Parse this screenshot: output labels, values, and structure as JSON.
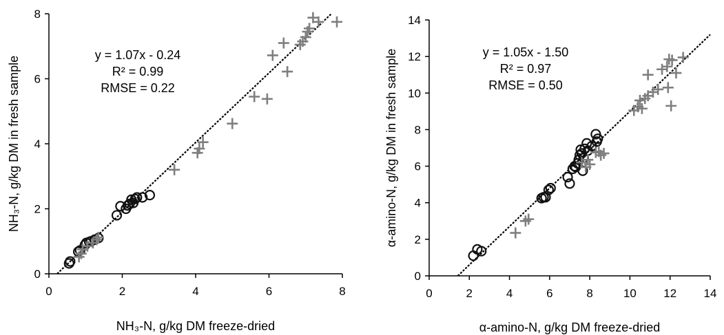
{
  "colors": {
    "circle": "#111111",
    "plus": "#7f7f7f",
    "line": "#000000"
  },
  "chart_data": [
    {
      "type": "scatter",
      "xlim": [
        0,
        8
      ],
      "ylim": [
        0,
        8
      ],
      "xticks": [
        "0",
        "2",
        "4",
        "6",
        "8"
      ],
      "yticks": [
        "0",
        "2",
        "4",
        "6",
        "8"
      ],
      "xlabel": "NH₃-N, g/kg DM freeze-dried",
      "ylabel": "NH₃-N, g/kg DM in fresh sample",
      "annotations": [
        "y = 1.07x - 0.24",
        "R² = 0.99",
        "RMSE = 0.22"
      ],
      "regression": {
        "slope": 1.07,
        "intercept": -0.24
      },
      "series": [
        {
          "marker": "circle",
          "points": [
            [
              0.55,
              0.32
            ],
            [
              0.58,
              0.38
            ],
            [
              0.8,
              0.68
            ],
            [
              0.85,
              0.72
            ],
            [
              0.98,
              0.88
            ],
            [
              1.02,
              0.95
            ],
            [
              1.1,
              0.98
            ],
            [
              1.15,
              1.0
            ],
            [
              1.25,
              1.05
            ],
            [
              1.35,
              1.1
            ],
            [
              1.85,
              1.8
            ],
            [
              1.95,
              2.08
            ],
            [
              2.1,
              2.0
            ],
            [
              2.15,
              2.1
            ],
            [
              2.2,
              2.15
            ],
            [
              2.25,
              2.28
            ],
            [
              2.3,
              2.18
            ],
            [
              2.35,
              2.3
            ],
            [
              2.4,
              2.35
            ],
            [
              2.55,
              2.35
            ],
            [
              2.75,
              2.42
            ]
          ]
        },
        {
          "marker": "plus",
          "points": [
            [
              0.82,
              0.52
            ],
            [
              0.88,
              0.62
            ],
            [
              0.92,
              0.75
            ],
            [
              1.05,
              0.85
            ],
            [
              1.2,
              0.95
            ],
            [
              1.3,
              1.05
            ],
            [
              1.35,
              1.12
            ],
            [
              3.42,
              3.2
            ],
            [
              4.05,
              3.72
            ],
            [
              4.1,
              3.85
            ],
            [
              4.2,
              4.05
            ],
            [
              5.0,
              4.62
            ],
            [
              5.6,
              5.45
            ],
            [
              5.95,
              5.38
            ],
            [
              6.1,
              6.72
            ],
            [
              6.4,
              7.1
            ],
            [
              6.5,
              6.22
            ],
            [
              6.85,
              7.05
            ],
            [
              6.92,
              7.15
            ],
            [
              7.0,
              7.28
            ],
            [
              7.05,
              7.45
            ],
            [
              7.1,
              7.55
            ],
            [
              7.2,
              7.88
            ],
            [
              7.35,
              7.75
            ],
            [
              7.85,
              7.75
            ]
          ]
        }
      ]
    },
    {
      "type": "scatter",
      "xlim": [
        0,
        14
      ],
      "ylim": [
        0,
        14
      ],
      "xticks": [
        "0",
        "2",
        "4",
        "6",
        "8",
        "10",
        "12",
        "14"
      ],
      "yticks": [
        "0",
        "2",
        "4",
        "6",
        "8",
        "10",
        "12",
        "14"
      ],
      "xlabel": "α-amino-N, g/kg DM freeze-dried",
      "ylabel": "α-amino-N, g/kg DM in fresh sample",
      "annotations": [
        "y = 1.05x - 1.50",
        "R² = 0.97",
        "RMSE = 0.50"
      ],
      "regression": {
        "slope": 1.05,
        "intercept": -1.5
      },
      "series": [
        {
          "marker": "circle",
          "points": [
            [
              2.2,
              1.1
            ],
            [
              2.4,
              1.45
            ],
            [
              2.6,
              1.35
            ],
            [
              5.6,
              4.25
            ],
            [
              5.7,
              4.3
            ],
            [
              5.8,
              4.3
            ],
            [
              5.95,
              4.7
            ],
            [
              6.05,
              4.8
            ],
            [
              6.9,
              5.4
            ],
            [
              7.0,
              5.05
            ],
            [
              7.15,
              5.85
            ],
            [
              7.25,
              6.0
            ],
            [
              7.3,
              5.95
            ],
            [
              7.4,
              6.15
            ],
            [
              7.45,
              6.35
            ],
            [
              7.5,
              6.6
            ],
            [
              7.55,
              6.9
            ],
            [
              7.6,
              6.7
            ],
            [
              7.65,
              5.75
            ],
            [
              7.7,
              6.45
            ],
            [
              7.75,
              6.95
            ],
            [
              7.85,
              7.25
            ],
            [
              7.9,
              6.85
            ],
            [
              8.1,
              7.1
            ],
            [
              8.3,
              7.75
            ],
            [
              8.35,
              7.35
            ],
            [
              8.4,
              7.5
            ]
          ]
        },
        {
          "marker": "plus",
          "points": [
            [
              4.3,
              2.35
            ],
            [
              4.8,
              3.0
            ],
            [
              4.95,
              3.1
            ],
            [
              7.6,
              6.2
            ],
            [
              7.8,
              5.95
            ],
            [
              7.9,
              6.35
            ],
            [
              8.0,
              6.1
            ],
            [
              8.3,
              6.75
            ],
            [
              8.45,
              6.8
            ],
            [
              8.55,
              6.6
            ],
            [
              8.7,
              6.7
            ],
            [
              10.2,
              9.05
            ],
            [
              10.4,
              9.25
            ],
            [
              10.5,
              9.6
            ],
            [
              10.6,
              9.15
            ],
            [
              10.75,
              9.7
            ],
            [
              10.9,
              9.85
            ],
            [
              10.9,
              11.0
            ],
            [
              11.15,
              10.05
            ],
            [
              11.4,
              10.2
            ],
            [
              11.6,
              11.3
            ],
            [
              11.85,
              11.45
            ],
            [
              11.9,
              10.3
            ],
            [
              11.95,
              11.85
            ],
            [
              12.05,
              9.3
            ],
            [
              12.1,
              11.8
            ],
            [
              12.3,
              11.1
            ],
            [
              12.65,
              11.95
            ]
          ]
        }
      ]
    }
  ]
}
